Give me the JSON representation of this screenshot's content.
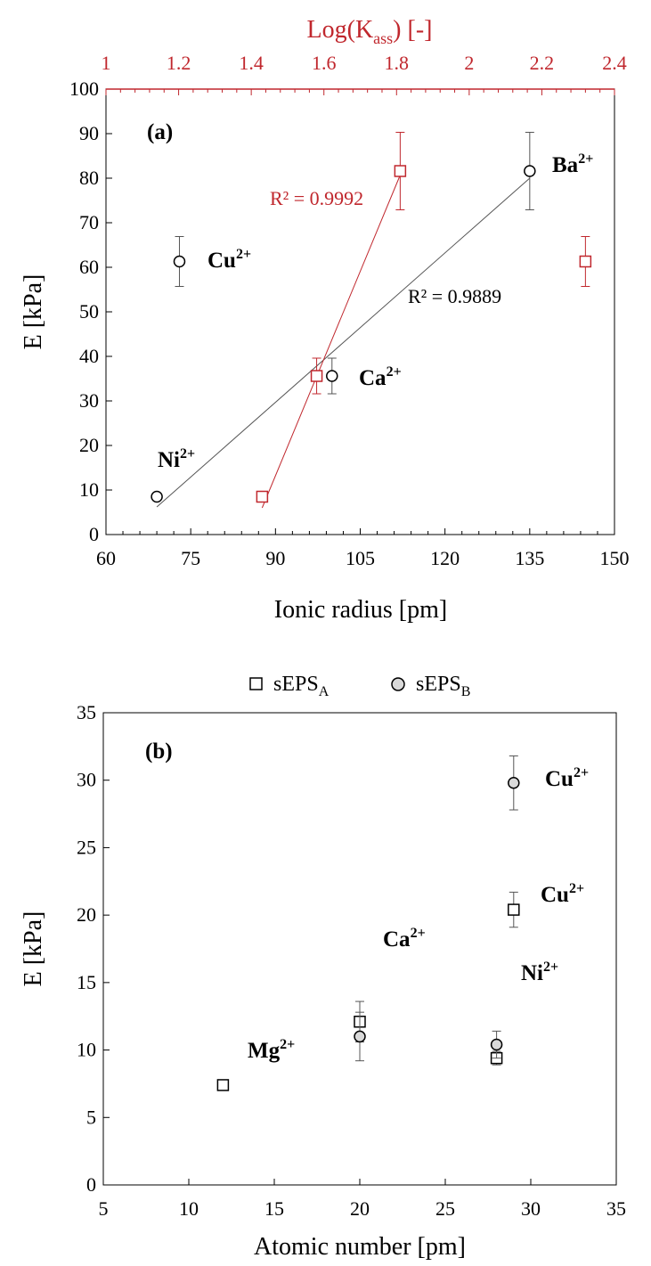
{
  "colors": {
    "axis": "#000000",
    "red": "#C0272D",
    "marker_fill_gray": "#d9d9d9",
    "fit_black": "#555555"
  },
  "chart_data": [
    {
      "panel": "(a)",
      "type": "scatter",
      "xlabel": "Ionic radius [pm]",
      "ylabel": "E [kPa]",
      "top_xlabel": "Log(K",
      "top_xlabel_sub": "ass",
      "top_xlabel_tail": ") [-]",
      "xlim": [
        60,
        150
      ],
      "ylim": [
        0,
        100
      ],
      "top_xlim": [
        1,
        2.4
      ],
      "x_ticks": [
        "60",
        "75",
        "90",
        "105",
        "120",
        "135",
        "150"
      ],
      "y_ticks": [
        "0",
        "10",
        "20",
        "30",
        "40",
        "50",
        "60",
        "70",
        "80",
        "90",
        "100"
      ],
      "top_x_ticks": [
        "1",
        "1.2",
        "1.4",
        "1.6",
        "1.8",
        "2",
        "2.2",
        "2.4"
      ],
      "grid": false,
      "series": [
        {
          "marker": "circle",
          "axis": "bottom",
          "points": [
            {
              "x": 69,
              "y": 8.5,
              "err": 0
            },
            {
              "x": 73,
              "y": 61.3,
              "err": 5.6
            },
            {
              "x": 100,
              "y": 35.6,
              "err": 4.0
            },
            {
              "x": 135,
              "y": 81.6,
              "err": 8.7
            }
          ],
          "fit": {
            "x1": 69,
            "y1": 6.2,
            "x2": 135,
            "y2": 80.0,
            "r2": "R² = 0.9889"
          }
        },
        {
          "marker": "square",
          "axis": "top",
          "points": [
            {
              "x": 1.43,
              "y": 8.5,
              "err": 0
            },
            {
              "x": 1.58,
              "y": 35.6,
              "err": 4.0
            },
            {
              "x": 1.81,
              "y": 81.6,
              "err": 8.7
            },
            {
              "x": 2.32,
              "y": 61.3,
              "err": 5.6
            }
          ],
          "fit": {
            "x1": 1.43,
            "y1": 6.0,
            "x2": 1.81,
            "y2": 80.7,
            "r2": "R² = 0.9992"
          }
        }
      ],
      "annotations": [
        {
          "base": "Ni",
          "sup": "2+"
        },
        {
          "base": "Cu",
          "sup": "2+"
        },
        {
          "base": "Ca",
          "sup": "2+"
        },
        {
          "base": "Ba",
          "sup": "2+"
        }
      ]
    },
    {
      "panel": "(b)",
      "type": "scatter",
      "xlabel": "Atomic number [pm]",
      "ylabel": "E [kPa]",
      "xlim": [
        5,
        35
      ],
      "ylim": [
        0,
        35
      ],
      "x_ticks": [
        "5",
        "10",
        "15",
        "20",
        "25",
        "30",
        "35"
      ],
      "y_ticks": [
        "0",
        "5",
        "10",
        "15",
        "20",
        "25",
        "30",
        "35"
      ],
      "grid": false,
      "legend": [
        {
          "base": "sEPS",
          "sub": "A",
          "marker": "square"
        },
        {
          "base": "sEPS",
          "sub": "B",
          "marker": "circle"
        }
      ],
      "legend_position": "top-center",
      "series": [
        {
          "name": "sEPSA",
          "marker": "square",
          "points": [
            {
              "x": 12,
              "y": 7.4,
              "err": 0
            },
            {
              "x": 20,
              "y": 12.1,
              "err": 1.5
            },
            {
              "x": 28,
              "y": 9.4,
              "err": 0.5
            },
            {
              "x": 29,
              "y": 20.4,
              "err": 1.3
            }
          ]
        },
        {
          "name": "sEPSB",
          "marker": "circle",
          "points": [
            {
              "x": 20,
              "y": 11.0,
              "err": 1.8
            },
            {
              "x": 28,
              "y": 10.4,
              "err": 1.0
            },
            {
              "x": 29,
              "y": 29.8,
              "err": 2.0
            }
          ]
        }
      ],
      "annotations": [
        {
          "base": "Mg",
          "sup": "2+"
        },
        {
          "base": "Ca",
          "sup": "2+"
        },
        {
          "base": "Ni",
          "sup": "2+"
        },
        {
          "base": "Cu",
          "sup": "2+"
        },
        {
          "base": "Cu",
          "sup": "2+"
        }
      ]
    }
  ]
}
